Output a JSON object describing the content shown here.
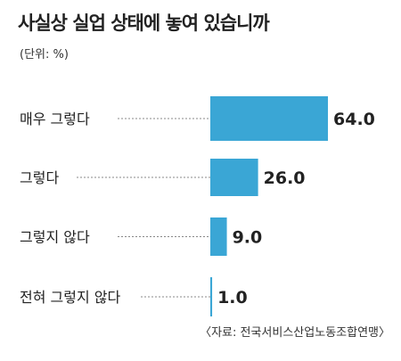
{
  "title": "사실상 실업 상태에 놓여 있습니까",
  "unit": "(단위: %)",
  "source": "〈자료: 전국서비스산업노동조합연맹〉",
  "colors": {
    "bar": "#3aa6d5",
    "leader": "#888888",
    "text": "#222222"
  },
  "chart_data": {
    "type": "bar",
    "orientation": "horizontal",
    "categories": [
      "매우 그렇다",
      "그렇다",
      "그렇지 않다",
      "전혀 그렇지 않다"
    ],
    "values": [
      64.0,
      26.0,
      9.0,
      1.0
    ],
    "value_labels": [
      "64.0",
      "26.0",
      "9.0",
      "1.0"
    ],
    "xlim": [
      0,
      64
    ],
    "grid": false,
    "legend": "none"
  }
}
